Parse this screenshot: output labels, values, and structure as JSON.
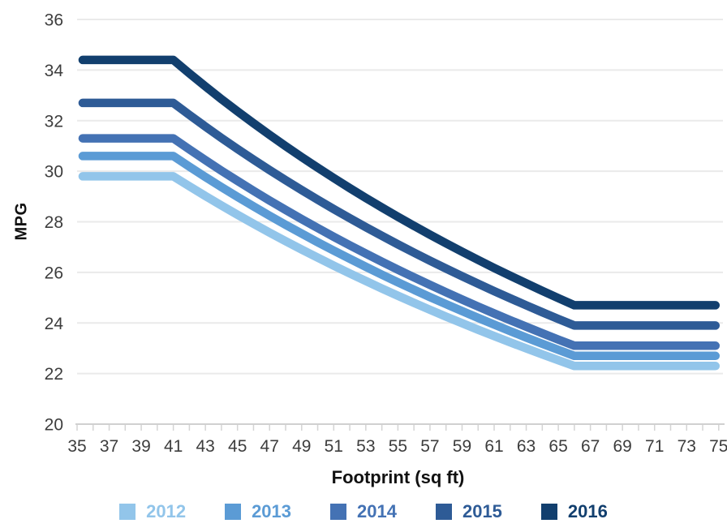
{
  "chart_data": {
    "type": "line",
    "title": "",
    "xlabel": "Footprint (sq ft)",
    "ylabel": "MPG",
    "x_axis": {
      "min": 35,
      "max": 75,
      "labeled_ticks": [
        35,
        37,
        39,
        41,
        43,
        45,
        47,
        49,
        51,
        53,
        55,
        57,
        59,
        61,
        63,
        65,
        67,
        69,
        71,
        73,
        75
      ],
      "minor_tick_step": 1
    },
    "y_axis": {
      "min": 20,
      "max": 36,
      "ticks": [
        20,
        22,
        24,
        26,
        28,
        30,
        32,
        34,
        36
      ]
    },
    "grid": {
      "horizontal": true,
      "vertical": false
    },
    "legend_position": "bottom",
    "curve_shape": {
      "line_start_footprint": 35.35,
      "flat_max_until_footprint": 41,
      "flat_min_from_footprint": 66,
      "line_end_footprint": 74.8,
      "between_breakpoints": "linear in 1/MPG"
    },
    "series": [
      {
        "name": "2012",
        "color": "#92C5EA",
        "max_mpg": 29.8,
        "min_mpg": 22.3
      },
      {
        "name": "2013",
        "color": "#5B9BD5",
        "max_mpg": 30.6,
        "min_mpg": 22.7
      },
      {
        "name": "2014",
        "color": "#4472B4",
        "max_mpg": 31.3,
        "min_mpg": 23.1
      },
      {
        "name": "2015",
        "color": "#2E5B96",
        "max_mpg": 32.7,
        "min_mpg": 23.9
      },
      {
        "name": "2016",
        "color": "#123F6E",
        "max_mpg": 34.4,
        "min_mpg": 24.7
      }
    ]
  },
  "colors": {
    "background": "#ffffff",
    "gridline": "#eaeaea",
    "axis_line": "#d0d0d0",
    "tick_mark": "#d4d4d4",
    "tick_label": "#3d3d3d",
    "axis_title": "#111111"
  }
}
